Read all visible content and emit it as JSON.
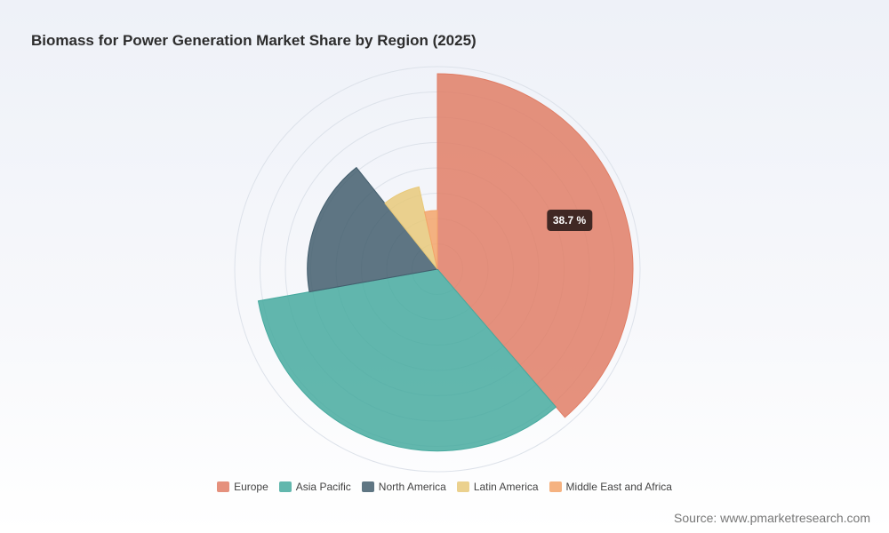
{
  "title": "Biomass for Power Generation Market Share by Region (2025)",
  "source": "Source: www.pmarketresearch.com",
  "chart_data": {
    "type": "nightingale-rose (polar area)",
    "title": "Biomass for Power Generation Market Share by Region (2025)",
    "unit": "%",
    "categories": [
      "Europe",
      "Asia Pacific",
      "North America",
      "Latin America",
      "Middle East and Africa"
    ],
    "values": [
      38.7,
      33.5,
      17.1,
      7.2,
      3.5
    ],
    "colors": [
      "#e07e66",
      "#47aa9f",
      "#435e6d",
      "#e8c97a",
      "#f3a56a"
    ],
    "grid": "concentric circles",
    "legend_position": "bottom-center",
    "highlighted": {
      "category": "Europe",
      "label": "38.7 %"
    }
  }
}
